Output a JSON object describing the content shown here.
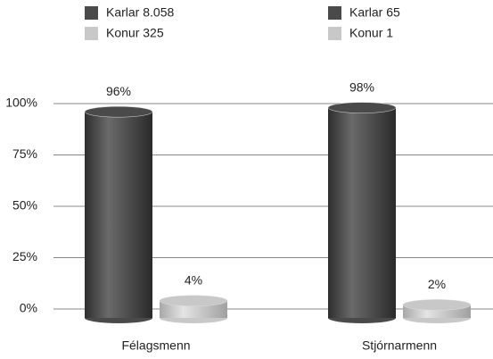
{
  "chart_data": {
    "type": "bar",
    "categories": [
      "Félagsmenn",
      "Stjórnarmenn"
    ],
    "legends": [
      [
        "Karlar 8.058",
        "Konur 325"
      ],
      [
        "Karlar 65",
        "Konur 1"
      ]
    ],
    "series": [
      {
        "color": "#4a4a4a",
        "values": [
          96,
          98
        ],
        "value_labels": [
          "96%",
          "98%"
        ]
      },
      {
        "color": "#c8c8c8",
        "values": [
          4,
          2
        ],
        "value_labels": [
          "4%",
          "2%"
        ]
      }
    ],
    "ylim": [
      0,
      100
    ],
    "yticks": [
      {
        "value": 0,
        "label": "0%"
      },
      {
        "value": 25,
        "label": "25%"
      },
      {
        "value": 50,
        "label": "50%"
      },
      {
        "value": 75,
        "label": "75%"
      },
      {
        "value": 100,
        "label": "100%"
      }
    ],
    "grid": true
  }
}
